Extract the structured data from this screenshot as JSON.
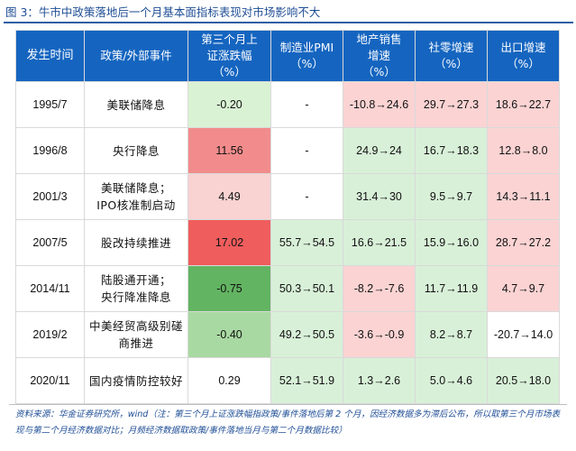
{
  "title": "图 3：牛市中政策落地后一个月基本面指标表现对市场影响不大",
  "colors": {
    "header_bg": "#1565c0",
    "pink": "#fbd3d3",
    "green": "#d8f0d8"
  },
  "headers": [
    "发生时间",
    "政策/外部事件",
    "第三个月上\n证涨跌幅\n（%）",
    "制造业PMI\n（%）",
    "地产销售\n增速\n（%）",
    "社零增速\n（%）",
    "出口增速\n（%）"
  ],
  "rows": [
    {
      "date": "1995/7",
      "event": "美联储降息",
      "chg": "-0.20",
      "pmi": "-",
      "estate": "-10.8→24.6",
      "retail": "29.7→27.3",
      "export": "18.6→22.7",
      "chg_color": "#d9f2d4",
      "pmi_color": "#ffffff",
      "estate_color": "#fbd3d3",
      "retail_color": "#fbd3d3",
      "export_color": "#fbd3d3"
    },
    {
      "date": "1996/8",
      "event": "央行降息",
      "chg": "11.56",
      "pmi": "-",
      "estate": "24.9→24",
      "retail": "16.7→18.3",
      "export": "12.8→8.0",
      "chg_color": "#f28c8c",
      "pmi_color": "#ffffff",
      "estate_color": "#d8f0d8",
      "retail_color": "#d8f0d8",
      "export_color": "#fbd3d3"
    },
    {
      "date": "2001/3",
      "event": "美联储降息；\nIPO核准制启动",
      "chg": "4.49",
      "pmi": "-",
      "estate": "31.4→30",
      "retail": "9.5→9.7",
      "export": "14.3→11.1",
      "chg_color": "#f9d2d2",
      "pmi_color": "#ffffff",
      "estate_color": "#d8f0d8",
      "retail_color": "#d8f0d8",
      "export_color": "#fbd3d3"
    },
    {
      "date": "2007/5",
      "event": "股改持续推进",
      "chg": "17.02",
      "pmi": "55.7→54.5",
      "estate": "16.6→21.5",
      "retail": "15.9→16.0",
      "export": "28.7→27.2",
      "chg_color": "#ef5d5d",
      "pmi_color": "#d8f0d8",
      "estate_color": "#d8f0d8",
      "retail_color": "#d8f0d8",
      "export_color": "#fbd3d3"
    },
    {
      "date": "2014/11",
      "event": "陆股通开通；\n央行降准降息",
      "chg": "-0.75",
      "pmi": "50.3→50.1",
      "estate": "-8.2→-7.6",
      "retail": "11.7→11.9",
      "export": "4.7→9.7",
      "chg_color": "#62b462",
      "pmi_color": "#d8f0d8",
      "estate_color": "#fbd3d3",
      "retail_color": "#d8f0d8",
      "export_color": "#fbd3d3"
    },
    {
      "date": "2019/2",
      "event": "中美经贸高级别磋\n商推进",
      "chg": "-0.40",
      "pmi": "49.2→50.5",
      "estate": "-3.6→-0.9",
      "retail": "8.2→8.7",
      "export": "-20.7→14.0",
      "chg_color": "#a9d9a2",
      "pmi_color": "#d8f0d8",
      "estate_color": "#fbd3d3",
      "retail_color": "#d8f0d8",
      "export_color": "#ffffff"
    },
    {
      "date": "2020/11",
      "event": "国内疫情防控较好",
      "chg": "0.29",
      "pmi": "52.1→51.9",
      "estate": "1.3→2.6",
      "retail": "5.0→4.6",
      "export": "20.5→18.0",
      "chg_color": "#ffffff",
      "pmi_color": "#d8f0d8",
      "estate_color": "#d8f0d8",
      "retail_color": "#d8f0d8",
      "export_color": "#d8f0d8"
    }
  ],
  "footnote": "资料来源：华金证券研究所，wind（注：第三个月上证涨跌幅指政策/事件落地后第 2 个月，因经济数据多为滞后公布，所以取第三个月市场表现与第二个月经济数据对比；月频经济数据取政策/事件落地当月与第二个月数据比较）"
}
